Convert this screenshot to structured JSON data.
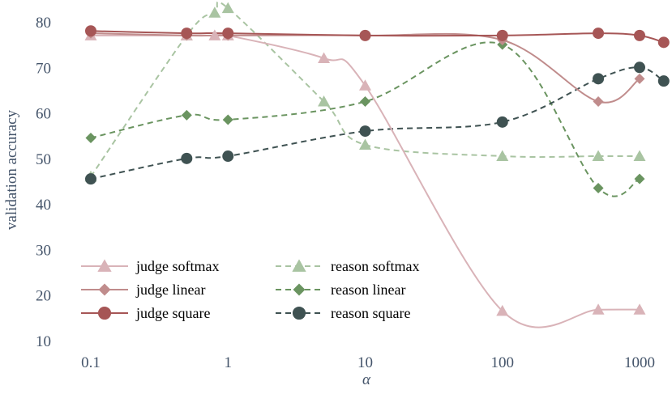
{
  "chart_data": {
    "type": "line",
    "xlabel": "α",
    "ylabel": "validation accuracy",
    "x_scale": "log",
    "xlim": [
      0.1,
      1500
    ],
    "ylim": [
      10,
      85
    ],
    "x_ticks": [
      0.1,
      1,
      10,
      100,
      1000
    ],
    "x_tick_labels": [
      "0.1",
      "1",
      "10",
      "100",
      "1000"
    ],
    "y_ticks": [
      10,
      20,
      30,
      40,
      50,
      60,
      70,
      80
    ],
    "y_tick_labels": [
      "10",
      "20",
      "30",
      "40",
      "50",
      "60",
      "70",
      "80"
    ],
    "grid": false,
    "legend_position": "bottom-left",
    "series": [
      {
        "name": "judge softmax",
        "color": "#d9b3b8",
        "line_style": "solid",
        "marker": "triangle",
        "x": [
          0.1,
          0.5,
          0.8,
          1,
          5,
          10,
          100,
          500,
          1000
        ],
        "y": [
          77,
          77,
          77,
          77,
          72,
          66,
          16.5,
          16.8,
          16.8
        ]
      },
      {
        "name": "judge linear",
        "color": "#c08c8c",
        "line_style": "solid",
        "marker": "diamond",
        "x": [
          0.1,
          0.5,
          1,
          10,
          100,
          500,
          1000
        ],
        "y": [
          77.5,
          77,
          77,
          77,
          76,
          62.5,
          67.5
        ]
      },
      {
        "name": "judge square",
        "color": "#a65656",
        "line_style": "solid",
        "marker": "circle",
        "x": [
          0.1,
          0.5,
          1,
          10,
          100,
          500,
          1000,
          1500
        ],
        "y": [
          78,
          77.5,
          77.5,
          77,
          77,
          77.5,
          77,
          75.5
        ]
      },
      {
        "name": "reason softmax",
        "color": "#a9c4a2",
        "line_style": "dashed",
        "marker": "triangle",
        "x": [
          0.1,
          0.5,
          0.8,
          1,
          5,
          10,
          100,
          500,
          1000
        ],
        "y": [
          46,
          77,
          82,
          83,
          62.5,
          53,
          50.5,
          50.5,
          50.5
        ]
      },
      {
        "name": "reason linear",
        "color": "#6a9460",
        "line_style": "dashed",
        "marker": "diamond",
        "x": [
          0.1,
          0.5,
          1,
          10,
          100,
          500,
          1000
        ],
        "y": [
          54.5,
          59.5,
          58.5,
          62.5,
          75,
          43.5,
          45.5
        ]
      },
      {
        "name": "reason square",
        "color": "#3f5252",
        "line_style": "dashed",
        "marker": "circle",
        "x": [
          0.1,
          0.5,
          1,
          10,
          100,
          500,
          1000,
          1500
        ],
        "y": [
          45.5,
          50,
          50.5,
          56,
          58,
          67.5,
          70,
          67
        ]
      }
    ]
  }
}
